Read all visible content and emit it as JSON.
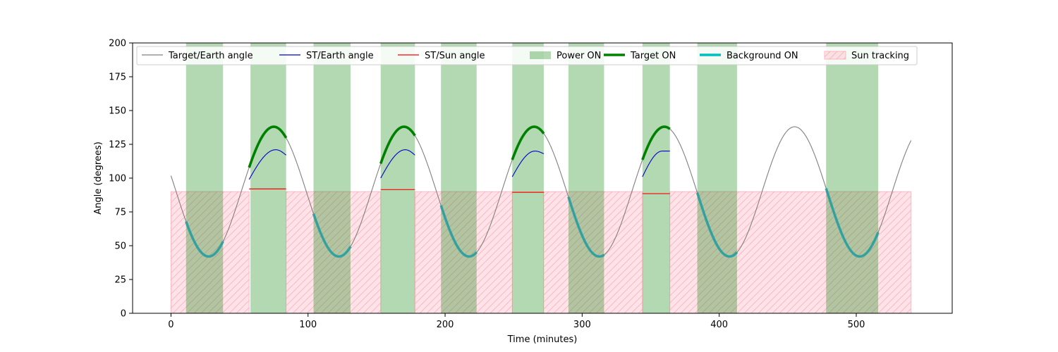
{
  "chart_data": {
    "type": "line",
    "title": "",
    "xlabel": "Time (minutes)",
    "ylabel": "Angle (degrees)",
    "xlim": [
      -28,
      570
    ],
    "ylim": [
      0,
      200
    ],
    "xticks": [
      0,
      100,
      200,
      300,
      400,
      500
    ],
    "yticks": [
      0,
      25,
      50,
      75,
      100,
      125,
      150,
      175,
      200
    ],
    "grid": false,
    "legend_position": "top",
    "legend": [
      {
        "label": "Target/Earth angle",
        "kind": "line",
        "color": "#808080"
      },
      {
        "label": "ST/Earth angle",
        "kind": "line",
        "color": "#0000cc"
      },
      {
        "label": "ST/Sun angle",
        "kind": "line",
        "color": "#ff0000"
      },
      {
        "label": "Power ON",
        "kind": "patch",
        "color": "#008000"
      },
      {
        "label": "Target ON",
        "kind": "thick-line",
        "color": "#008000"
      },
      {
        "label": "Background ON",
        "kind": "thick-line",
        "color": "#00bfbf"
      },
      {
        "label": "Sun tracking",
        "kind": "hatch-patch",
        "color": "#ffb6c1"
      }
    ],
    "target_earth_angle": {
      "x_range": [
        0,
        540
      ],
      "mean": 90,
      "amplitude": 48,
      "period_minutes": 95,
      "peak_at_minute": 455,
      "color": "#808080"
    },
    "power_on_intervals": [
      [
        11,
        38
      ],
      [
        58,
        84
      ],
      [
        104,
        131
      ],
      [
        153,
        178
      ],
      [
        197,
        223
      ],
      [
        249,
        272
      ],
      [
        290,
        316
      ],
      [
        344,
        364
      ],
      [
        384,
        413
      ],
      [
        478,
        516
      ]
    ],
    "target_on_segments": [
      [
        57,
        84
      ],
      [
        153,
        178
      ],
      [
        249,
        272
      ],
      [
        344,
        364
      ]
    ],
    "background_on_segments": [
      [
        11,
        38
      ],
      [
        104,
        131
      ],
      [
        197,
        223
      ],
      [
        290,
        316
      ],
      [
        384,
        413
      ],
      [
        478,
        516
      ]
    ],
    "st_earth_angle": {
      "color": "#0000cc",
      "segments": [
        {
          "x_range": [
            57,
            84
          ],
          "start": 99,
          "peak": 121,
          "end": 117
        },
        {
          "x_range": [
            153,
            178
          ],
          "start": 100,
          "peak": 121,
          "end": 117
        },
        {
          "x_range": [
            249,
            272
          ],
          "start": 101,
          "peak": 120,
          "end": 118
        },
        {
          "x_range": [
            344,
            364
          ],
          "start": 101,
          "peak": 120,
          "end": 120
        }
      ]
    },
    "st_sun_angle": {
      "color": "#ff0000",
      "segments": [
        {
          "x_range": [
            57,
            84
          ],
          "value": 92
        },
        {
          "x_range": [
            153,
            178
          ],
          "value": 91.5
        },
        {
          "x_range": [
            249,
            272
          ],
          "value": 89.5
        },
        {
          "x_range": [
            344,
            364
          ],
          "value": 88.5
        }
      ]
    },
    "sun_tracking_regions": [
      {
        "x_range": [
          0,
          57
        ],
        "y_range": [
          0,
          90
        ]
      },
      {
        "x_range": [
          84,
          153
        ],
        "y_range": [
          0,
          90
        ]
      },
      {
        "x_range": [
          178,
          249
        ],
        "y_range": [
          0,
          90
        ]
      },
      {
        "x_range": [
          272,
          344
        ],
        "y_range": [
          0,
          90
        ]
      },
      {
        "x_range": [
          364,
          540
        ],
        "y_range": [
          0,
          90
        ]
      }
    ]
  }
}
